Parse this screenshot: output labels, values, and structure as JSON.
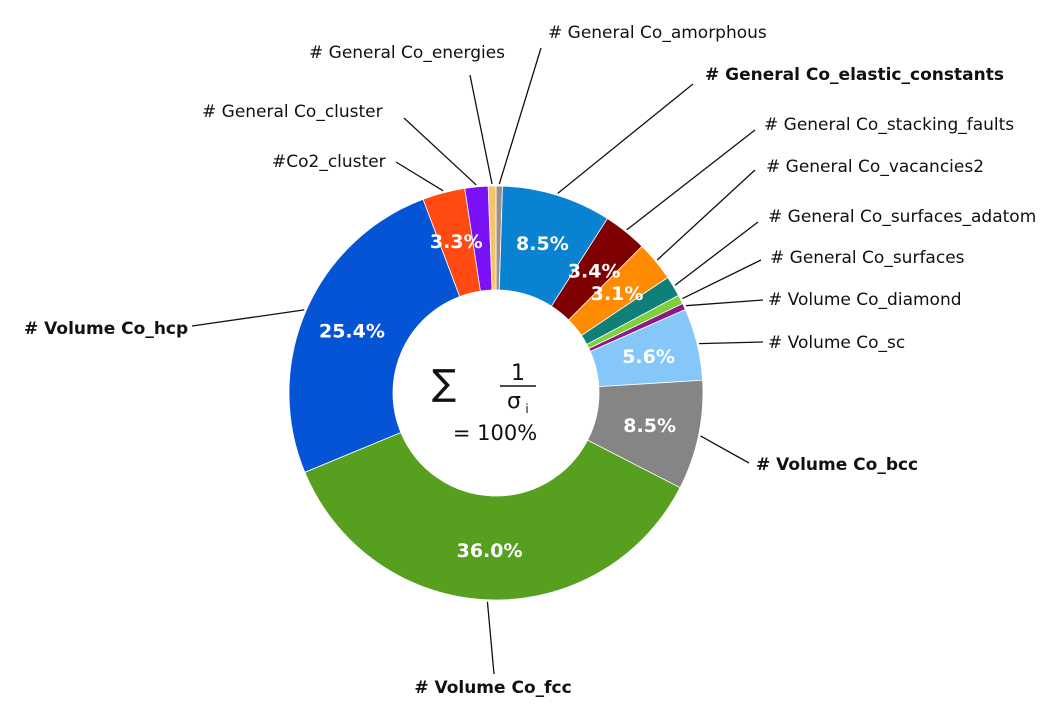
{
  "chart_data": {
    "type": "pie",
    "donut": true,
    "center_label": {
      "sum_symbol": "∑",
      "numerator": "1",
      "denominator": "σ",
      "subscript": "i",
      "total": "= 100%"
    },
    "slices": [
      {
        "name": "# General Co_amorphous",
        "value": 0.5,
        "label": "",
        "color": "#a08f85",
        "bold": false
      },
      {
        "name": "# General Co_elastic_constants",
        "value": 8.5,
        "label": "8.5%",
        "color": "#0a82d2",
        "bold": true
      },
      {
        "name": "# General Co_stacking_faults",
        "value": 3.4,
        "label": "3.4%",
        "color": "#7f0000",
        "bold": false
      },
      {
        "name": "# General Co_vacancies2",
        "value": 3.1,
        "label": "3.1%",
        "color": "#ff8c00",
        "bold": false
      },
      {
        "name": "# General Co_surfaces_adatom",
        "value": 1.6,
        "label": "",
        "color": "#0f7f7a",
        "bold": false
      },
      {
        "name": "# General Co_surfaces",
        "value": 0.7,
        "label": "",
        "color": "#7fcf3a",
        "bold": false
      },
      {
        "name": "# Volume Co_diamond",
        "value": 0.5,
        "label": "",
        "color": "#8a1a8a",
        "bold": false
      },
      {
        "name": "# Volume Co_sc",
        "value": 5.6,
        "label": "5.6%",
        "color": "#86c7fa",
        "bold": false
      },
      {
        "name": "# Volume Co_bcc",
        "value": 8.5,
        "label": "8.5%",
        "color": "#858585",
        "bold": true
      },
      {
        "name": "# Volume Co_fcc",
        "value": 36.0,
        "label": "36.0%",
        "color": "#57a01f",
        "bold": true
      },
      {
        "name": "# Volume Co_hcp",
        "value": 25.4,
        "label": "25.4%",
        "color": "#0654d6",
        "bold": true
      },
      {
        "name": "#Co2_cluster",
        "value": 3.3,
        "label": "3.3%",
        "color": "#ff4a12",
        "bold": false
      },
      {
        "name": "# General Co_cluster",
        "value": 1.8,
        "label": "",
        "color": "#7a10f5",
        "bold": false
      },
      {
        "name": "# General Co_energies",
        "value": 0.6,
        "label": "",
        "color": "#f5c36a",
        "bold": false
      }
    ]
  }
}
